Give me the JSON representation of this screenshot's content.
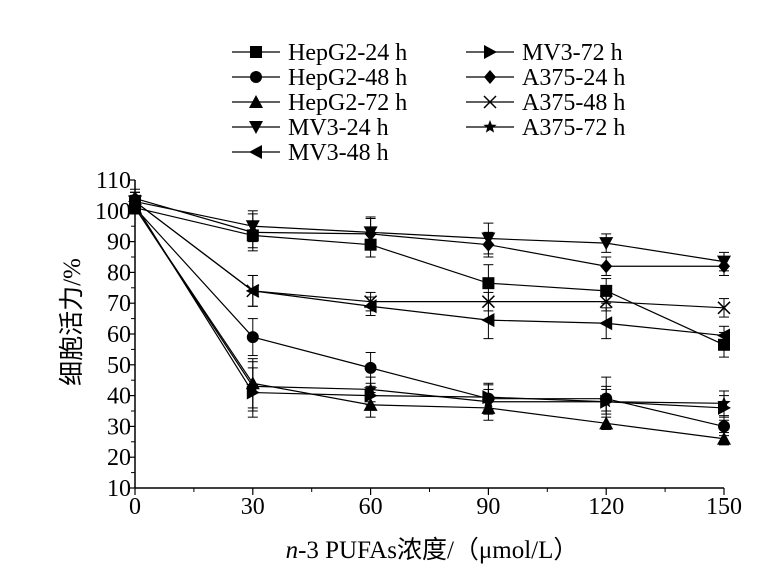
{
  "chart_data": {
    "type": "line",
    "title": "",
    "xlabel_italic": "n",
    "xlabel_rest": "-3 PUFAs浓度/（μmol/L）",
    "ylabel": "细胞活力/%",
    "x": [
      0,
      30,
      60,
      90,
      120,
      150
    ],
    "xlim": [
      0,
      150
    ],
    "ylim": [
      10,
      110
    ],
    "xticks": [
      "0",
      "30",
      "60",
      "90",
      "120",
      "150"
    ],
    "yticks": [
      "10",
      "20",
      "30",
      "40",
      "50",
      "60",
      "70",
      "80",
      "90",
      "100",
      "110"
    ],
    "grid": false,
    "legend_position": "top",
    "series": [
      {
        "name": "HepG2-24 h",
        "marker": "square",
        "values": [
          101,
          92,
          89,
          76.5,
          74,
          56.5
        ],
        "err": [
          2,
          4,
          4,
          6,
          4,
          4
        ]
      },
      {
        "name": "HepG2-48 h",
        "marker": "circle",
        "values": [
          101,
          59,
          49,
          39,
          39,
          30
        ],
        "err": [
          2,
          6,
          5,
          5,
          4,
          3
        ]
      },
      {
        "name": "HepG2-72 h",
        "marker": "triangle-up",
        "values": [
          101,
          44,
          37,
          36,
          31,
          26
        ],
        "err": [
          2,
          8,
          4,
          4,
          2,
          2
        ]
      },
      {
        "name": "MV3-24 h",
        "marker": "triangle-down",
        "values": [
          103,
          95,
          93,
          91,
          89.5,
          83.5
        ],
        "err": [
          3,
          5,
          5,
          5,
          3,
          3
        ]
      },
      {
        "name": "MV3-48 h",
        "marker": "triangle-left",
        "values": [
          103,
          74,
          69,
          64.5,
          63.5,
          59.5
        ],
        "err": [
          3,
          5,
          3,
          6,
          5,
          3
        ]
      },
      {
        "name": "MV3-72 h",
        "marker": "triangle-right",
        "values": [
          102,
          41,
          40,
          39.5,
          38,
          36
        ],
        "err": [
          3,
          8,
          3,
          4,
          4,
          4
        ]
      },
      {
        "name": "A375-24 h",
        "marker": "diamond",
        "values": [
          104,
          93,
          92.5,
          89,
          82,
          82
        ],
        "err": [
          3,
          6,
          5,
          4,
          3,
          3
        ]
      },
      {
        "name": "A375-48 h",
        "marker": "x",
        "values": [
          103,
          74,
          70.5,
          70.5,
          70.5,
          68.5
        ],
        "err": [
          3,
          5,
          3,
          3,
          3,
          3
        ]
      },
      {
        "name": "A375-72 h",
        "marker": "star",
        "values": [
          101,
          43,
          42,
          38,
          38,
          37.5
        ],
        "err": [
          2,
          8,
          4,
          4,
          8,
          4
        ]
      }
    ]
  }
}
